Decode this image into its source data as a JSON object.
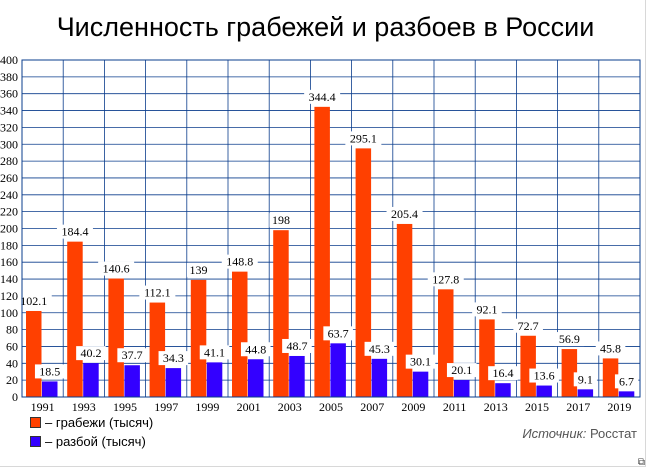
{
  "title": "Численность грабежей и разбоев в России",
  "legend": {
    "items": [
      {
        "label": "– грабежи (тысяч)",
        "color": "#ff4000"
      },
      {
        "label": "– разбой (тысяч)",
        "color": "#3300ff"
      }
    ]
  },
  "source": {
    "prefix": "Источник:",
    "name": "Росстат"
  },
  "chart_data": {
    "type": "bar",
    "title": "Численность грабежей и разбоев в России",
    "categories": [
      "1991",
      "1993",
      "1995",
      "1997",
      "1999",
      "2001",
      "2003",
      "2005",
      "2007",
      "2009",
      "2011",
      "2013",
      "2015",
      "2017",
      "2019"
    ],
    "series": [
      {
        "name": "– грабежи (тысяч)",
        "color": "#ff4000",
        "values": [
          102.1,
          184.4,
          140.6,
          112.1,
          139,
          148.8,
          198,
          344.4,
          295.1,
          205.4,
          127.8,
          92.1,
          72.7,
          56.9,
          45.8
        ],
        "labels": [
          "102.1",
          "184.4",
          "140.6",
          "112.1",
          "139",
          "148.8",
          "198",
          "344.4",
          "295.1",
          "205.4",
          "127.8",
          "92.1",
          "72.7",
          "56.9",
          "45.8"
        ]
      },
      {
        "name": "– разбой (тысяч)",
        "color": "#3300ff",
        "values": [
          18.5,
          40.2,
          37.7,
          34.3,
          41.1,
          44.8,
          48.7,
          63.7,
          45.3,
          30.1,
          20.1,
          16.4,
          13.6,
          9.1,
          6.7
        ],
        "labels": [
          "18.5",
          "40.2",
          "37.7",
          "34.3",
          "41.1",
          "44.8",
          "48.7",
          "63.7",
          "45.3",
          "30.1",
          "20.1",
          "16.4",
          "13.6",
          "9.1",
          "6.7"
        ]
      }
    ],
    "yticks": [
      "0",
      "20",
      "40",
      "60",
      "80",
      "100",
      "120",
      "140",
      "160",
      "180",
      "200",
      "220",
      "240",
      "260",
      "280",
      "300",
      "320",
      "340",
      "360",
      "380",
      "400"
    ],
    "ylim": [
      0,
      400
    ],
    "grid": true,
    "legend_position": "bottom-left",
    "xlabel": "",
    "ylabel": ""
  }
}
